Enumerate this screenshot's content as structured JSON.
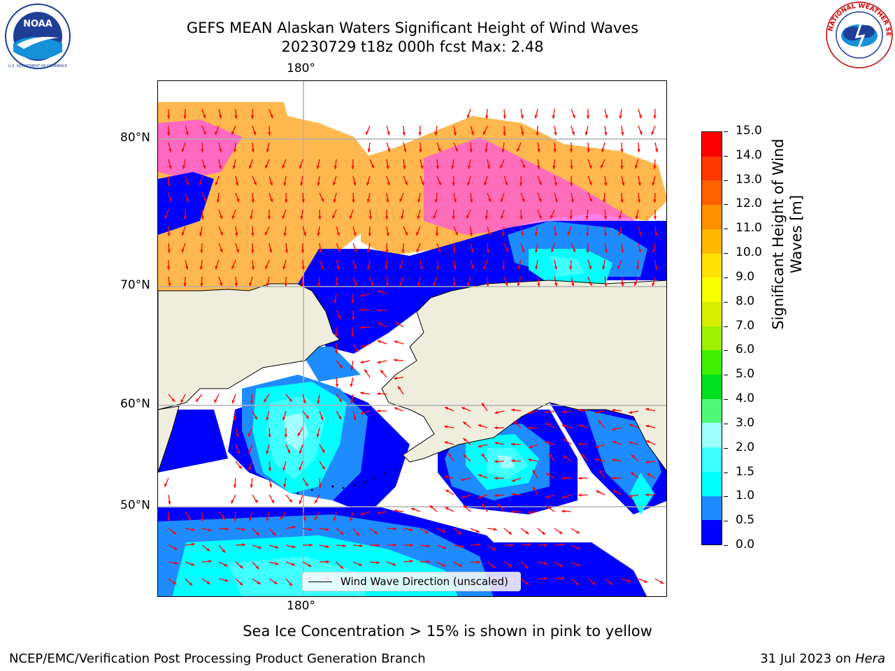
{
  "title": {
    "line1": "GEFS MEAN Alaskan Waters Significant Height of Wind Waves",
    "line2": "20230729 t18z 000h fcst   Max: 2.48"
  },
  "map": {
    "lon_labels": [
      "180°",
      "180°"
    ],
    "lat_labels": [
      "80°N",
      "70°N",
      "60°N",
      "50°N"
    ],
    "colors": {
      "land": "#efeddc",
      "no_data": "#ffffff",
      "gridline": "#b0b0b0",
      "coast": "#000000",
      "arrow": "#ff0000"
    },
    "legend": {
      "label": "Wind Wave Direction (unscaled)"
    }
  },
  "colorbar": {
    "title": "Significant Height of Wind Waves [m]",
    "ticks": [
      "0.0",
      "0.5",
      "1.0",
      "1.5",
      "2.0",
      "3.0",
      "4.0",
      "5.0",
      "6.0",
      "7.0",
      "8.0",
      "9.0",
      "10.0",
      "11.0",
      "12.0",
      "13.0",
      "14.0",
      "15.0"
    ],
    "colors": [
      "#0000ff",
      "#1e8cff",
      "#00ffff",
      "#40ffff",
      "#a0ffff",
      "#50f878",
      "#00e020",
      "#40f000",
      "#a0f000",
      "#d8f000",
      "#f8ff00",
      "#ffe000",
      "#ffb800",
      "#ff9000",
      "#ff6000",
      "#ff3800",
      "#ff0000"
    ]
  },
  "notes": {
    "sea_ice": "Sea Ice Concentration > 15% is shown in pink to yellow",
    "left": "NCEP/EMC/Verification Post Processing Product Generation Branch",
    "right_date": "31 Jul 2023 on ",
    "right_system": "Hera"
  },
  "logos": {
    "noaa": "NOAA",
    "nws": "NATIONAL WEATHER SERVICE"
  }
}
